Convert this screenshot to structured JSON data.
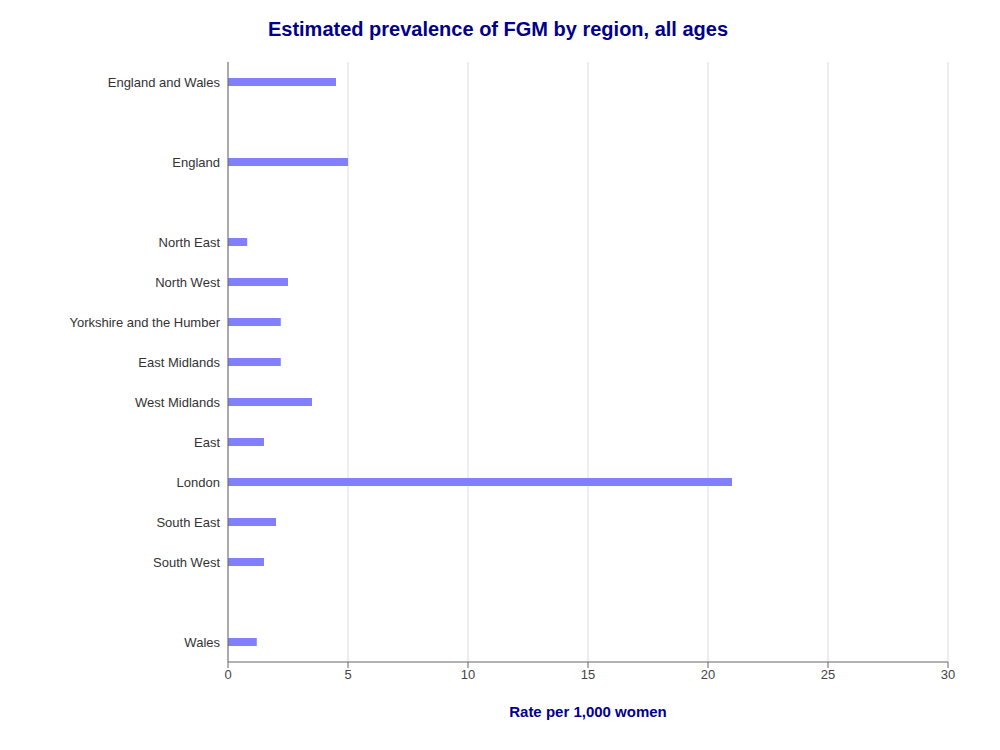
{
  "chart_data": {
    "type": "bar",
    "title": "Estimated prevalence of FGM by region, all ages",
    "orientation": "horizontal",
    "categories": [
      "England and Wales",
      null,
      "England",
      null,
      "North East",
      "North West",
      "Yorkshire and the Humber",
      "East Midlands",
      "West Midlands",
      "East",
      "London",
      "South East",
      "South West",
      null,
      "Wales"
    ],
    "values": [
      4.5,
      null,
      5.0,
      null,
      0.8,
      2.5,
      2.2,
      2.2,
      3.5,
      1.5,
      21.0,
      2.0,
      1.5,
      null,
      1.2
    ],
    "color": "#8080ff",
    "xlabel": "Rate per 1,000 women",
    "xlim": [
      0,
      30
    ],
    "xticks": [
      0,
      5,
      10,
      15,
      20,
      25,
      30
    ],
    "grid": true
  }
}
